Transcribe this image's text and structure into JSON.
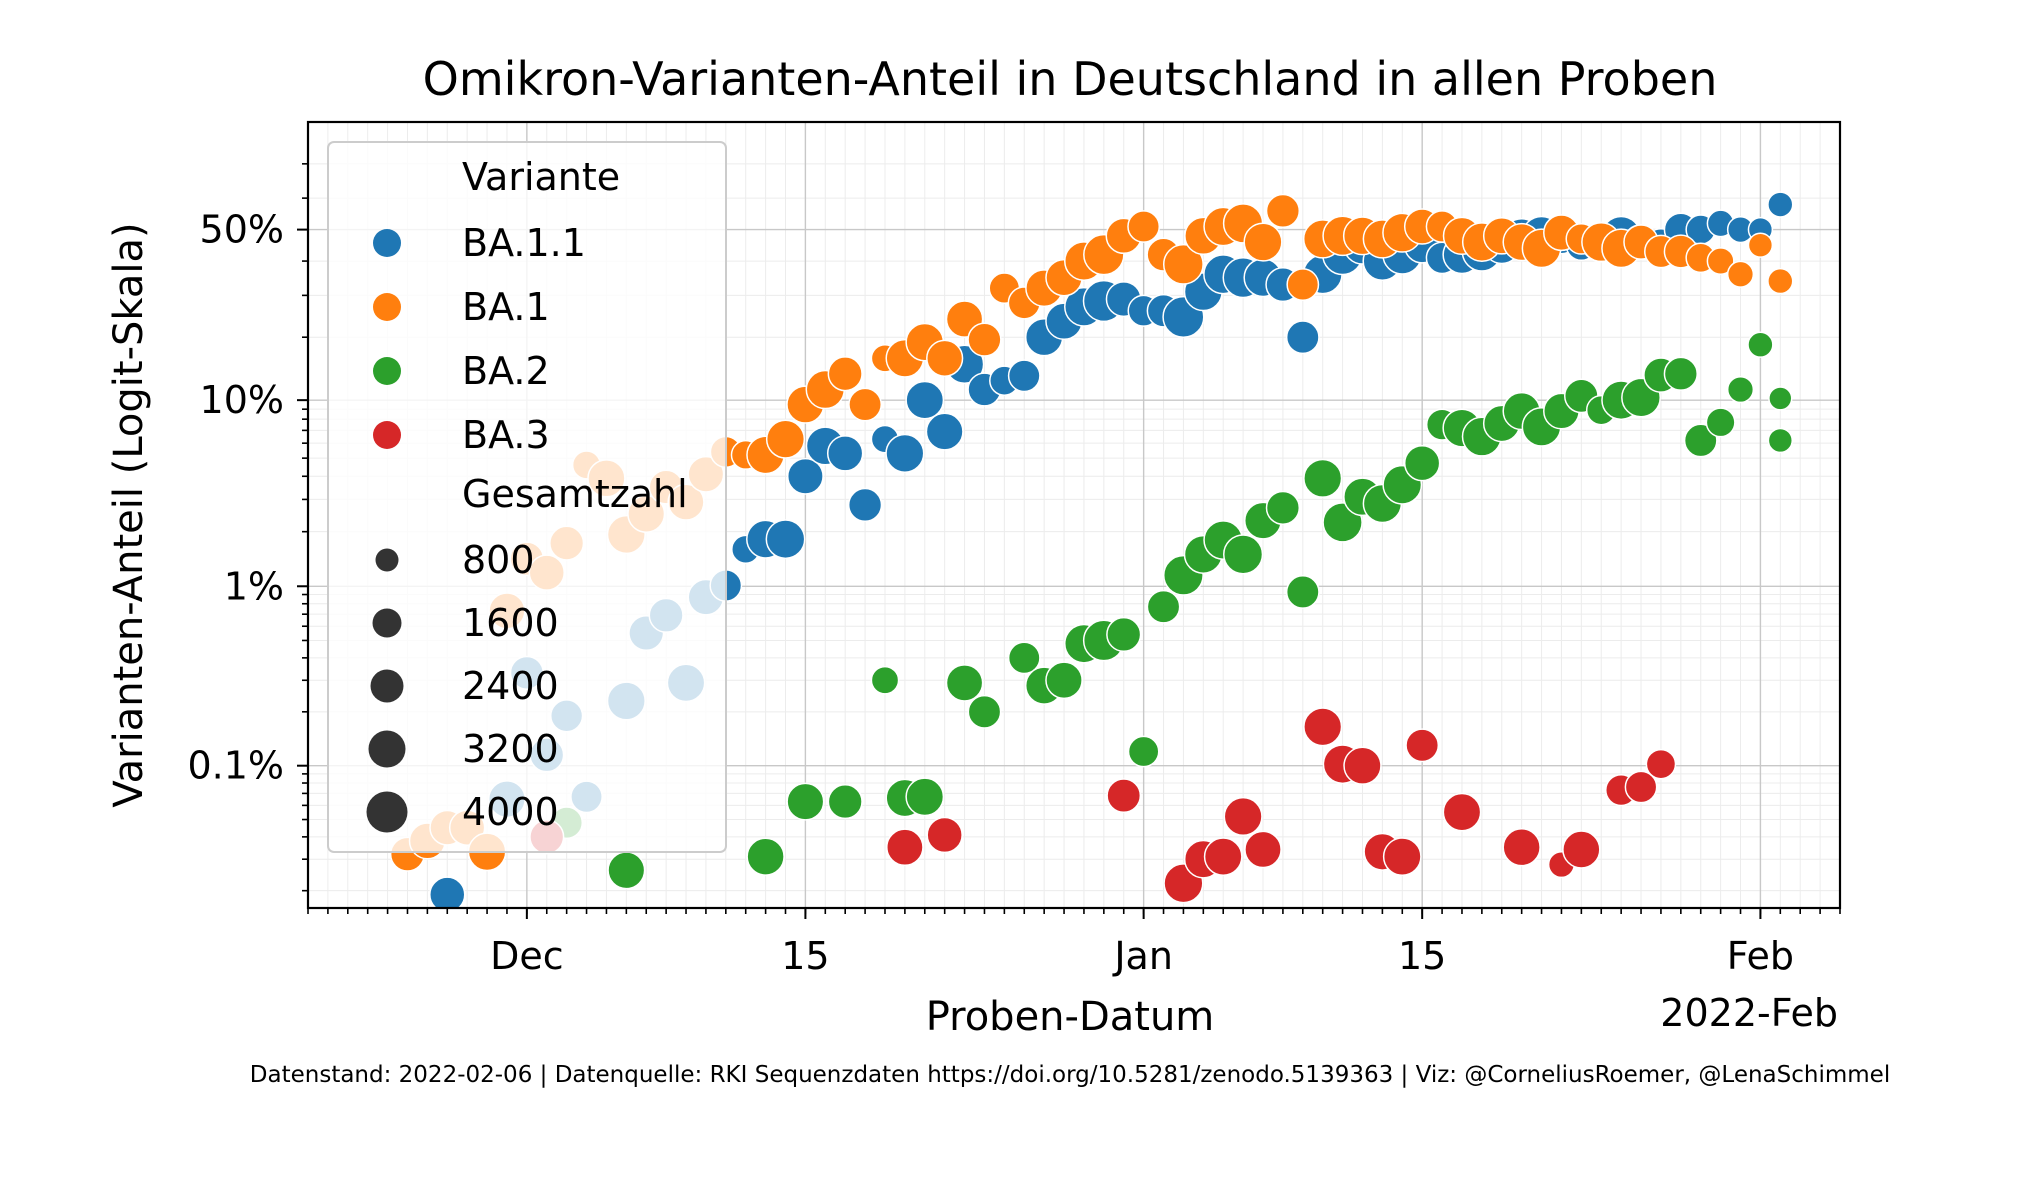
{
  "chart_data": {
    "type": "scatter",
    "title": "Omikron-Varianten-Anteil in Deutschland in allen Proben",
    "xlabel": "Proben-Datum",
    "ylabel": "Varianten-Anteil (Logit-Skala)",
    "x_scale": "date",
    "y_scale": "logit",
    "xlim": [
      "2021-11-20",
      "2022-02-05"
    ],
    "ylim": [
      0.00016,
      0.8
    ],
    "x_ticks": [
      {
        "date": "2021-12-01",
        "label": "Dec"
      },
      {
        "date": "2021-12-15",
        "label": "15"
      },
      {
        "date": "2022-01-01",
        "label": "Jan"
      },
      {
        "date": "2022-01-15",
        "label": "15"
      },
      {
        "date": "2022-02-01",
        "label": "Feb"
      }
    ],
    "x_offset_label": "2022-Feb",
    "y_ticks": [
      {
        "value": 0.5,
        "label": "50%"
      },
      {
        "value": 0.1,
        "label": "10%"
      },
      {
        "value": 0.01,
        "label": "1%"
      },
      {
        "value": 0.001,
        "label": "0.1%"
      }
    ],
    "grid": true,
    "legend": {
      "position": "upper-left",
      "hue_title": "Variante",
      "size_title": "Gesamtzahl",
      "size_entries": [
        800,
        1600,
        2400,
        3200,
        4000
      ]
    },
    "size_range": [
      0,
      4000
    ],
    "series": [
      {
        "name": "BA.1.1",
        "color": "#1f77b4",
        "points": [
          [
            "2021-11-27",
            0.00019,
            2300
          ],
          [
            "2021-11-30",
            0.00065,
            2700
          ],
          [
            "2021-12-01",
            0.0033,
            1800
          ],
          [
            "2021-12-02",
            0.00115,
            2000
          ],
          [
            "2021-12-03",
            0.0019,
            1600
          ],
          [
            "2021-12-04",
            0.00067,
            1500
          ],
          [
            "2021-12-06",
            0.0023,
            3000
          ],
          [
            "2021-12-07",
            0.0055,
            2200
          ],
          [
            "2021-12-08",
            0.0069,
            2000
          ],
          [
            "2021-12-09",
            0.0029,
            2900
          ],
          [
            "2021-12-10",
            0.0087,
            2400
          ],
          [
            "2021-12-11",
            0.0101,
            1500
          ],
          [
            "2021-12-12",
            0.016,
            900
          ],
          [
            "2021-12-13",
            0.0182,
            3000
          ],
          [
            "2021-12-14",
            0.0182,
            3200
          ],
          [
            "2021-12-15",
            0.04,
            2400
          ],
          [
            "2021-12-16",
            0.058,
            3000
          ],
          [
            "2021-12-17",
            0.053,
            2300
          ],
          [
            "2021-12-18",
            0.028,
            1800
          ],
          [
            "2021-12-19",
            0.063,
            800
          ],
          [
            "2021-12-20",
            0.053,
            3000
          ],
          [
            "2021-12-21",
            0.1,
            2900
          ],
          [
            "2021-12-22",
            0.069,
            2700
          ],
          [
            "2021-12-23",
            0.15,
            3100
          ],
          [
            "2021-12-24",
            0.113,
            1800
          ],
          [
            "2021-12-25",
            0.125,
            1100
          ],
          [
            "2021-12-26",
            0.132,
            1500
          ],
          [
            "2021-12-27",
            0.2,
            2800
          ],
          [
            "2021-12-28",
            0.235,
            2600
          ],
          [
            "2021-12-29",
            0.27,
            3200
          ],
          [
            "2021-12-30",
            0.285,
            3900
          ],
          [
            "2021-12-31",
            0.29,
            2200
          ],
          [
            "2022-01-01",
            0.26,
            1400
          ],
          [
            "2022-01-02",
            0.26,
            1700
          ],
          [
            "2022-01-03",
            0.245,
            3900
          ],
          [
            "2022-01-04",
            0.31,
            3000
          ],
          [
            "2022-01-05",
            0.36,
            3300
          ],
          [
            "2022-01-06",
            0.35,
            3600
          ],
          [
            "2022-01-07",
            0.35,
            3000
          ],
          [
            "2022-01-08",
            0.33,
            2000
          ],
          [
            "2022-01-09",
            0.2,
            1700
          ],
          [
            "2022-01-10",
            0.36,
            3300
          ],
          [
            "2022-01-11",
            0.42,
            3600
          ],
          [
            "2022-01-12",
            0.45,
            3000
          ],
          [
            "2022-01-13",
            0.4,
            3200
          ],
          [
            "2022-01-14",
            0.42,
            3300
          ],
          [
            "2022-01-15",
            0.45,
            2400
          ],
          [
            "2022-01-16",
            0.41,
            1500
          ],
          [
            "2022-01-17",
            0.42,
            3000
          ],
          [
            "2022-01-18",
            0.43,
            3400
          ],
          [
            "2022-01-19",
            0.45,
            2700
          ],
          [
            "2022-01-20",
            0.475,
            2900
          ],
          [
            "2022-01-21",
            0.48,
            3300
          ],
          [
            "2022-01-22",
            0.48,
            2500
          ],
          [
            "2022-01-23",
            0.45,
            1300
          ],
          [
            "2022-01-24",
            0.46,
            3500
          ],
          [
            "2022-01-25",
            0.48,
            3300
          ],
          [
            "2022-01-26",
            0.46,
            2200
          ],
          [
            "2022-01-27",
            0.45,
            1800
          ],
          [
            "2022-01-28",
            0.5,
            1800
          ],
          [
            "2022-01-29",
            0.5,
            1100
          ],
          [
            "2022-01-30",
            0.52,
            700
          ],
          [
            "2022-01-31",
            0.5,
            600
          ],
          [
            "2022-02-01",
            0.5,
            400
          ],
          [
            "2022-02-02",
            0.58,
            500
          ]
        ]
      },
      {
        "name": "BA.1",
        "color": "#ff7f0e",
        "points": [
          [
            "2021-11-25",
            0.00032,
            2000
          ],
          [
            "2021-11-26",
            0.00038,
            2500
          ],
          [
            "2021-11-27",
            0.00045,
            2200
          ],
          [
            "2021-11-28",
            0.00045,
            2300
          ],
          [
            "2021-11-29",
            0.00033,
            2900
          ],
          [
            "2021-11-30",
            0.0073,
            2500
          ],
          [
            "2021-12-01",
            0.0142,
            1900
          ],
          [
            "2021-12-02",
            0.0119,
            2300
          ],
          [
            "2021-12-03",
            0.0173,
            2000
          ],
          [
            "2021-12-04",
            0.046,
            900
          ],
          [
            "2021-12-05",
            0.039,
            2800
          ],
          [
            "2021-12-06",
            0.0193,
            3000
          ],
          [
            "2021-12-07",
            0.025,
            2700
          ],
          [
            "2021-12-08",
            0.035,
            2000
          ],
          [
            "2021-12-09",
            0.029,
            2500
          ],
          [
            "2021-12-10",
            0.041,
            2400
          ],
          [
            "2021-12-11",
            0.054,
            1400
          ],
          [
            "2021-12-12",
            0.052,
            1000
          ],
          [
            "2021-12-13",
            0.052,
            2900
          ],
          [
            "2021-12-14",
            0.063,
            3000
          ],
          [
            "2021-12-15",
            0.095,
            2800
          ],
          [
            "2021-12-16",
            0.113,
            3100
          ],
          [
            "2021-12-17",
            0.135,
            2000
          ],
          [
            "2021-12-18",
            0.095,
            1700
          ],
          [
            "2021-12-19",
            0.16,
            800
          ],
          [
            "2021-12-20",
            0.16,
            2900
          ],
          [
            "2021-12-21",
            0.19,
            2900
          ],
          [
            "2021-12-22",
            0.16,
            2500
          ],
          [
            "2021-12-23",
            0.24,
            2600
          ],
          [
            "2021-12-24",
            0.195,
            1800
          ],
          [
            "2021-12-25",
            0.32,
            1300
          ],
          [
            "2021-12-26",
            0.28,
            1600
          ],
          [
            "2021-12-27",
            0.32,
            2700
          ],
          [
            "2021-12-28",
            0.35,
            2600
          ],
          [
            "2021-12-29",
            0.4,
            3200
          ],
          [
            "2021-12-30",
            0.42,
            3700
          ],
          [
            "2021-12-31",
            0.48,
            2300
          ],
          [
            "2022-01-01",
            0.51,
            1500
          ],
          [
            "2022-01-02",
            0.42,
            1800
          ],
          [
            "2022-01-03",
            0.39,
            3500
          ],
          [
            "2022-01-04",
            0.48,
            2800
          ],
          [
            "2022-01-05",
            0.51,
            3200
          ],
          [
            "2022-01-06",
            0.52,
            3400
          ],
          [
            "2022-01-07",
            0.46,
            3000
          ],
          [
            "2022-01-08",
            0.56,
            1800
          ],
          [
            "2022-01-09",
            0.33,
            1500
          ],
          [
            "2022-01-10",
            0.47,
            3100
          ],
          [
            "2022-01-11",
            0.48,
            3400
          ],
          [
            "2022-01-12",
            0.48,
            3000
          ],
          [
            "2022-01-13",
            0.47,
            3100
          ],
          [
            "2022-01-14",
            0.49,
            3300
          ],
          [
            "2022-01-15",
            0.51,
            2300
          ],
          [
            "2022-01-16",
            0.51,
            1500
          ],
          [
            "2022-01-17",
            0.48,
            2800
          ],
          [
            "2022-01-18",
            0.46,
            3200
          ],
          [
            "2022-01-19",
            0.48,
            2600
          ],
          [
            "2022-01-20",
            0.46,
            2800
          ],
          [
            "2022-01-21",
            0.44,
            3200
          ],
          [
            "2022-01-22",
            0.49,
            2400
          ],
          [
            "2022-01-23",
            0.47,
            1300
          ],
          [
            "2022-01-24",
            0.46,
            3300
          ],
          [
            "2022-01-25",
            0.44,
            3200
          ],
          [
            "2022-01-26",
            0.46,
            2100
          ],
          [
            "2022-01-27",
            0.43,
            1700
          ],
          [
            "2022-01-28",
            0.43,
            1800
          ],
          [
            "2022-01-29",
            0.41,
            1100
          ],
          [
            "2022-01-30",
            0.4,
            700
          ],
          [
            "2022-01-31",
            0.36,
            600
          ],
          [
            "2022-02-01",
            0.45,
            400
          ],
          [
            "2022-02-02",
            0.34,
            500
          ]
        ]
      },
      {
        "name": "BA.2",
        "color": "#2ca02c",
        "points": [
          [
            "2021-12-03",
            0.00048,
            1500
          ],
          [
            "2021-12-06",
            0.00026,
            2700
          ],
          [
            "2021-12-13",
            0.00031,
            2800
          ],
          [
            "2021-12-15",
            0.00063,
            2700
          ],
          [
            "2021-12-17",
            0.00063,
            2000
          ],
          [
            "2021-12-19",
            0.003,
            800
          ],
          [
            "2021-12-20",
            0.00066,
            2900
          ],
          [
            "2021-12-21",
            0.00067,
            2900
          ],
          [
            "2021-12-23",
            0.0029,
            2600
          ],
          [
            "2021-12-24",
            0.002,
            1700
          ],
          [
            "2021-12-26",
            0.004,
            1500
          ],
          [
            "2021-12-27",
            0.0028,
            2800
          ],
          [
            "2021-12-28",
            0.003,
            2600
          ],
          [
            "2021-12-29",
            0.0048,
            3200
          ],
          [
            "2021-12-30",
            0.005,
            3800
          ],
          [
            "2021-12-31",
            0.0054,
            2000
          ],
          [
            "2022-01-01",
            0.0012,
            1300
          ],
          [
            "2022-01-02",
            0.0077,
            1700
          ],
          [
            "2022-01-03",
            0.0115,
            3500
          ],
          [
            "2022-01-04",
            0.015,
            3000
          ],
          [
            "2022-01-05",
            0.018,
            3200
          ],
          [
            "2022-01-06",
            0.015,
            3300
          ],
          [
            "2022-01-07",
            0.023,
            2700
          ],
          [
            "2022-01-08",
            0.027,
            1800
          ],
          [
            "2022-01-09",
            0.0093,
            1700
          ],
          [
            "2022-01-10",
            0.039,
            3000
          ],
          [
            "2022-01-11",
            0.0225,
            3400
          ],
          [
            "2022-01-12",
            0.031,
            2900
          ],
          [
            "2022-01-13",
            0.0285,
            3100
          ],
          [
            "2022-01-14",
            0.036,
            3200
          ],
          [
            "2022-01-15",
            0.047,
            2300
          ],
          [
            "2022-01-16",
            0.075,
            1400
          ],
          [
            "2022-01-17",
            0.072,
            3000
          ],
          [
            "2022-01-18",
            0.065,
            3300
          ],
          [
            "2022-01-19",
            0.076,
            2600
          ],
          [
            "2022-01-20",
            0.088,
            2800
          ],
          [
            "2022-01-21",
            0.073,
            3200
          ],
          [
            "2022-01-22",
            0.088,
            2400
          ],
          [
            "2022-01-23",
            0.105,
            1900
          ],
          [
            "2022-01-24",
            0.089,
            1100
          ],
          [
            "2022-01-25",
            0.1,
            3200
          ],
          [
            "2022-01-26",
            0.103,
            3200
          ],
          [
            "2022-01-27",
            0.133,
            2100
          ],
          [
            "2022-01-28",
            0.135,
            1800
          ],
          [
            "2022-01-29",
            0.062,
            1700
          ],
          [
            "2022-01-30",
            0.077,
            1000
          ],
          [
            "2022-01-31",
            0.113,
            600
          ],
          [
            "2022-02-01",
            0.185,
            500
          ],
          [
            "2022-02-02",
            0.062,
            400
          ],
          [
            "2022-02-02",
            0.102,
            300
          ]
        ]
      },
      {
        "name": "BA.3",
        "color": "#d62728",
        "points": [
          [
            "2021-12-02",
            0.0004,
            2000
          ],
          [
            "2021-12-20",
            0.00035,
            2600
          ],
          [
            "2021-12-22",
            0.00041,
            2300
          ],
          [
            "2021-12-31",
            0.00068,
            1900
          ],
          [
            "2022-01-03",
            0.00022,
            3300
          ],
          [
            "2022-01-04",
            0.0003,
            2900
          ],
          [
            "2022-01-05",
            0.00031,
            2900
          ],
          [
            "2022-01-06",
            0.00052,
            3000
          ],
          [
            "2022-01-07",
            0.00034,
            2600
          ],
          [
            "2022-01-10",
            0.00165,
            3000
          ],
          [
            "2022-01-11",
            0.00102,
            3200
          ],
          [
            "2022-01-12",
            0.001,
            2800
          ],
          [
            "2022-01-13",
            0.00033,
            2700
          ],
          [
            "2022-01-14",
            0.00031,
            2900
          ],
          [
            "2022-01-15",
            0.0013,
            1700
          ],
          [
            "2022-01-17",
            0.00055,
            2900
          ],
          [
            "2022-01-20",
            0.00035,
            2800
          ],
          [
            "2022-01-22",
            0.00028,
            600
          ],
          [
            "2022-01-23",
            0.00034,
            2800
          ],
          [
            "2022-01-25",
            0.00073,
            1400
          ],
          [
            "2022-01-26",
            0.00076,
            1500
          ],
          [
            "2022-01-27",
            0.00102,
            1100
          ]
        ]
      }
    ]
  },
  "caption": "Datenstand: 2022-02-06 | Datenquelle: RKI Sequenzdaten https://doi.org/10.5281/zenodo.5139363 | Viz: @CorneliusRoemer, @LenaSchimmel"
}
